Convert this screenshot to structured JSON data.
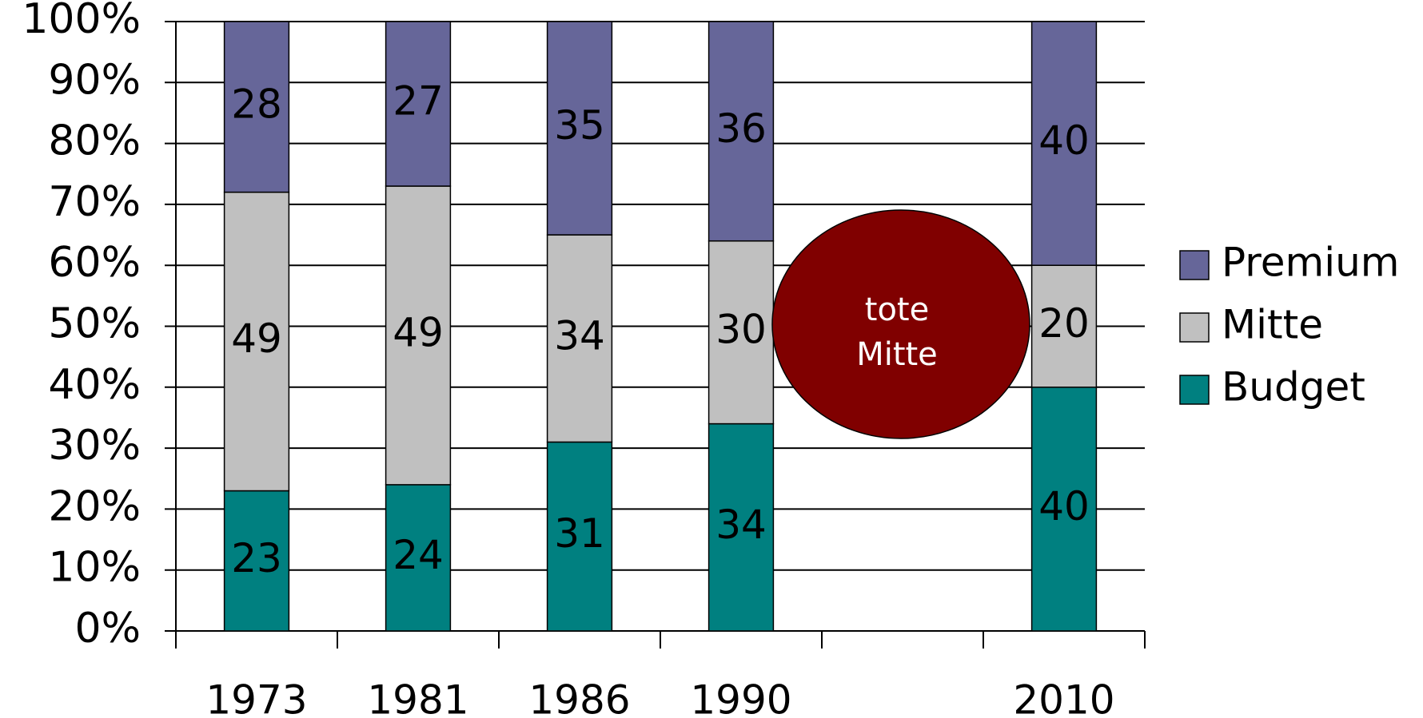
{
  "chart_data": {
    "type": "stacked_bar",
    "categories": [
      "1973",
      "1981",
      "1986",
      "1990",
      null,
      "2010"
    ],
    "series": [
      {
        "name": "Budget",
        "color": "#008080",
        "values": [
          23,
          24,
          31,
          34,
          null,
          40
        ]
      },
      {
        "name": "Mitte",
        "color": "#c0c0c0",
        "values": [
          49,
          49,
          34,
          30,
          null,
          20
        ]
      },
      {
        "name": "Premium",
        "color": "#666699",
        "values": [
          28,
          27,
          35,
          36,
          null,
          40
        ]
      }
    ],
    "ylim": [
      0,
      100
    ],
    "yticks": [
      {
        "value": 0,
        "label": "0%"
      },
      {
        "value": 10,
        "label": "10%"
      },
      {
        "value": 20,
        "label": "20%"
      },
      {
        "value": 30,
        "label": "30%"
      },
      {
        "value": 40,
        "label": "40%"
      },
      {
        "value": 50,
        "label": "50%"
      },
      {
        "value": 60,
        "label": "60%"
      },
      {
        "value": 70,
        "label": "70%"
      },
      {
        "value": 80,
        "label": "80%"
      },
      {
        "value": 90,
        "label": "90%"
      },
      {
        "value": 100,
        "label": "100%"
      }
    ],
    "grid": true,
    "legend": "right",
    "annotation": {
      "lines": [
        "tote",
        "Mitte"
      ],
      "color": "#800000"
    }
  }
}
